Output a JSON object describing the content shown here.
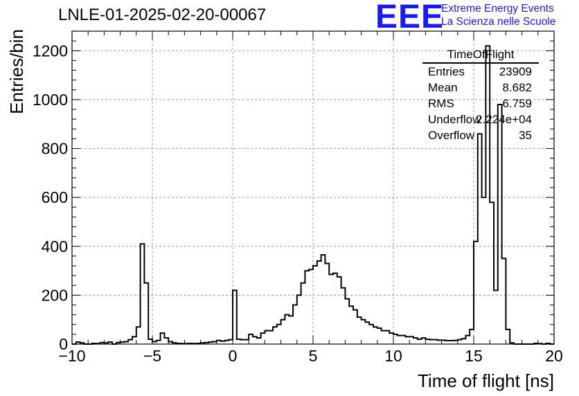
{
  "header": {
    "title": "LNLE-01-2025-02-20-00067",
    "logo": "EEE",
    "logo_line1": "Extreme Energy Events",
    "logo_line2": "La Scienza nelle Scuole"
  },
  "stats_box": {
    "title": "TimeOfFlight",
    "rows": [
      {
        "key": "Entries",
        "value": "23909"
      },
      {
        "key": "Mean",
        "value": "8.682"
      },
      {
        "key": "RMS",
        "value": "6.759"
      },
      {
        "key": "Underflow",
        "value": "2.224e+04"
      },
      {
        "key": "Overflow",
        "value": "35"
      }
    ]
  },
  "colors": {
    "line": "#000000",
    "grid": "#999999",
    "logo": "#1a1aff"
  },
  "chart_data": {
    "type": "histogram",
    "title": "LNLE-01-2025-02-20-00067",
    "xlabel": "Time of flight [ns]",
    "ylabel": "Entries/bin",
    "xlim": [
      -10,
      20
    ],
    "ylim": [
      0,
      1280
    ],
    "x_ticks": [
      -10,
      -5,
      0,
      5,
      10,
      15,
      20
    ],
    "x_tick_labels": [
      "−10",
      "−5",
      "0",
      "5",
      "10",
      "15",
      "20"
    ],
    "y_ticks": [
      0,
      200,
      400,
      600,
      800,
      1000,
      1200
    ],
    "y_tick_labels": [
      "0",
      "200",
      "400",
      "600",
      "800",
      "1000",
      "1200"
    ],
    "grid": true,
    "bin_width": 0.25,
    "bin_edges_start": -10,
    "values": [
      0,
      8,
      5,
      0,
      0,
      3,
      2,
      6,
      5,
      8,
      0,
      6,
      8,
      10,
      18,
      30,
      70,
      410,
      250,
      20,
      10,
      15,
      45,
      25,
      10,
      5,
      3,
      2,
      2,
      3,
      2,
      3,
      5,
      6,
      8,
      10,
      15,
      12,
      15,
      18,
      220,
      20,
      18,
      18,
      40,
      30,
      25,
      45,
      55,
      55,
      70,
      80,
      100,
      120,
      115,
      160,
      200,
      250,
      300,
      305,
      320,
      340,
      365,
      330,
      285,
      290,
      275,
      230,
      185,
      155,
      140,
      110,
      100,
      90,
      80,
      70,
      65,
      55,
      55,
      45,
      40,
      35,
      35,
      30,
      30,
      25,
      20,
      25,
      20,
      18,
      18,
      16,
      16,
      14,
      14,
      15,
      18,
      22,
      35,
      60,
      420,
      860,
      600,
      1220,
      580,
      220,
      980,
      350,
      60,
      5,
      0,
      0,
      0,
      0,
      0,
      3,
      2,
      0,
      3,
      0
    ]
  }
}
